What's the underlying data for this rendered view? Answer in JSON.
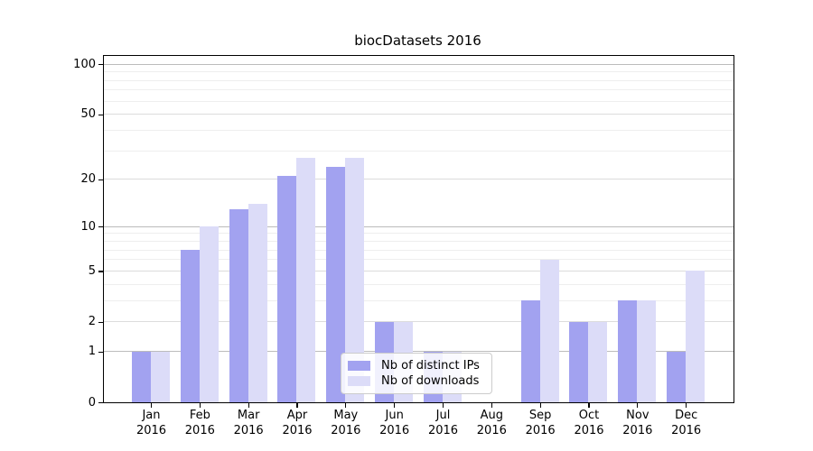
{
  "chart_data": {
    "type": "bar",
    "title": "biocDatasets 2016",
    "categories": [
      "Jan 2016",
      "Feb 2016",
      "Mar 2016",
      "Apr 2016",
      "May 2016",
      "Jun 2016",
      "Jul 2016",
      "Aug 2016",
      "Sep 2016",
      "Oct 2016",
      "Nov 2016",
      "Dec 2016"
    ],
    "series": [
      {
        "name": "Nb of distinct IPs",
        "color": "#a2a2f0",
        "values": [
          1,
          7,
          13,
          21,
          24,
          2,
          1,
          0,
          3,
          2,
          3,
          1
        ]
      },
      {
        "name": "Nb of downloads",
        "color": "#dcdcf8",
        "values": [
          1,
          10,
          14,
          27,
          27,
          2,
          1,
          0,
          6,
          2,
          3,
          5
        ]
      }
    ],
    "xlabel": "",
    "ylabel": "",
    "yscale": "log1p",
    "ylim": [
      0,
      112
    ],
    "yticks_major": [
      0,
      1,
      2,
      5,
      10,
      20,
      50,
      100
    ],
    "yticks_minor": [
      3,
      4,
      6,
      7,
      8,
      9,
      30,
      40,
      60,
      70,
      80,
      90
    ],
    "grid": true,
    "legend_position": "lower center"
  },
  "colors": {
    "grid_decade": "#bcbcbc",
    "grid_major": "#dcdcdc",
    "grid_minor": "#eeeeee",
    "spine": "#000000",
    "background": "#ffffff"
  }
}
